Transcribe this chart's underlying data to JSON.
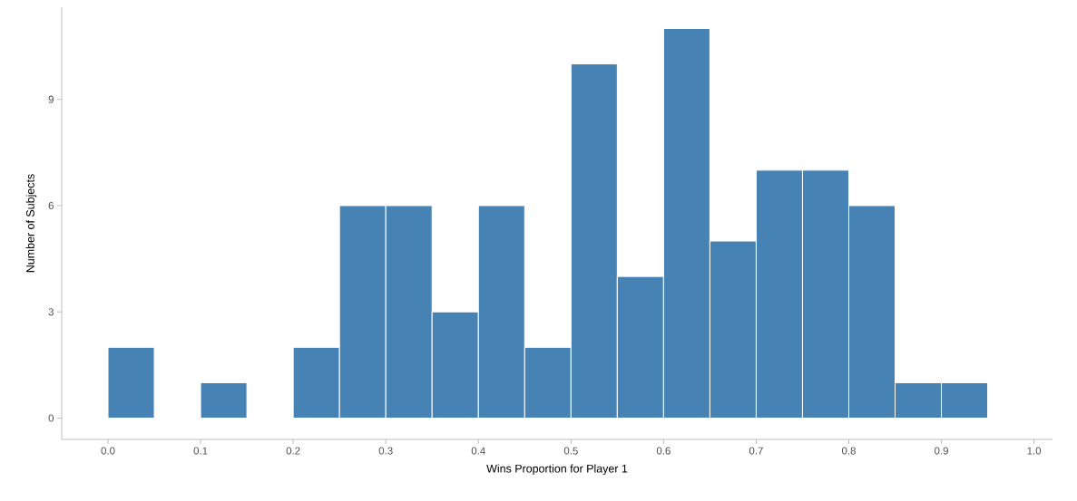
{
  "chart_data": {
    "type": "histogram",
    "xlabel": "Wins Proportion for Player 1",
    "ylabel": "Number of Subjects",
    "bins": [
      0,
      0.05,
      0.1,
      0.15,
      0.2,
      0.25,
      0.3,
      0.35,
      0.4,
      0.45,
      0.5,
      0.55,
      0.6,
      0.65,
      0.7,
      0.75,
      0.8,
      0.85,
      0.9,
      0.95
    ],
    "values": [
      2,
      0,
      1,
      0,
      2,
      6,
      6,
      3,
      6,
      2,
      10,
      4,
      11,
      5,
      7,
      7,
      6,
      1,
      1
    ],
    "color": "#4682b4",
    "xlim": [
      -0.05,
      1.02
    ],
    "ylim": [
      -0.6,
      11.6
    ],
    "xticks": [
      {
        "value": 0,
        "label": "0.0"
      },
      0.1,
      0.2,
      0.3,
      0.4,
      0.5,
      0.6,
      0.7,
      0.8,
      0.9,
      {
        "value": 1,
        "label": "1.0"
      }
    ],
    "yticks": [
      0,
      3,
      6,
      9
    ]
  }
}
